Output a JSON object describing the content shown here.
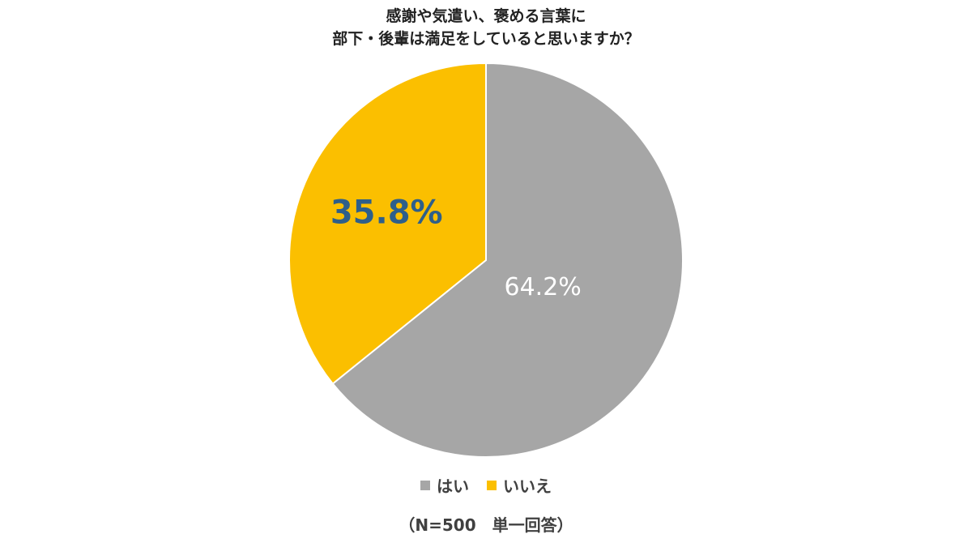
{
  "chart_data": {
    "type": "pie",
    "title_lines": [
      "感謝や気遣い、褒める言葉に",
      "部下・後輩は満足をしていると思いますか？"
    ],
    "slices": [
      {
        "name": "はい",
        "value": 64.2,
        "label": "64.2%",
        "color": "#a6a6a6",
        "label_color": "#ffffff"
      },
      {
        "name": "いいえ",
        "value": 35.8,
        "label": "35.8%",
        "color": "#fbbf00",
        "label_color": "#2e5f8a"
      }
    ],
    "legend_position": "bottom",
    "note": "（N=500　単一回答）"
  }
}
